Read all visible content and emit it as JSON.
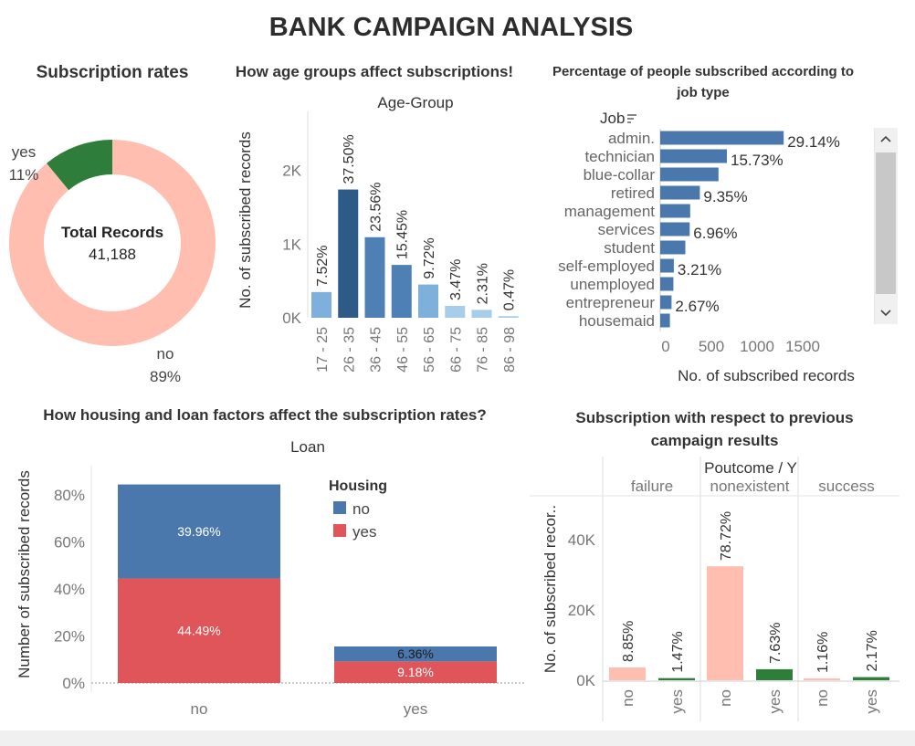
{
  "title": "BANK CAMPAIGN ANALYSIS",
  "subscription": {
    "title": "Subscription rates",
    "center_label": "Total Records",
    "center_value": "41,188"
  },
  "age": {
    "title": "How age groups affect subscriptions!",
    "header": "Age-Group"
  },
  "job": {
    "title_line1": "Percentage of people subscribed according to",
    "title_line2": "job type",
    "field_label": "Job",
    "scroll_up_icon": "chevron-up-icon",
    "scroll_down_icon": "chevron-down-icon"
  },
  "housing": {
    "title": "How housing and loan factors affect the subscription rates?",
    "header": "Loan",
    "legend_title": "Housing"
  },
  "poutcome": {
    "title_line1": "Subscription with respect to previous",
    "title_line2": "campaign results",
    "header": "Poutcome  /  Y"
  },
  "colors": {
    "donut_yes": "#2e7d3b",
    "donut_no": "#ffbeb0",
    "age_dark": "#2e5a88",
    "age_mid": "#4f80b5",
    "age_light": "#7fb0dc",
    "age_pale": "#a8cdea",
    "job_bar": "#4a78ad",
    "housing_no": "#4a78ad",
    "housing_yes": "#e0555a",
    "pout_no": "#ffbeb0",
    "pout_yes": "#2e7d3b"
  },
  "chart_data": [
    {
      "type": "pie",
      "name": "subscription-rates",
      "categories": [
        "yes",
        "no"
      ],
      "values": [
        11,
        89
      ],
      "labels": [
        "11%",
        "89%"
      ]
    },
    {
      "type": "bar",
      "name": "age-groups",
      "categories": [
        "17 - 25",
        "26 - 35",
        "36 - 45",
        "46 - 55",
        "56 - 65",
        "66 - 75",
        "76 - 85",
        "86 - 98"
      ],
      "values": [
        349,
        1740,
        1093,
        717,
        451,
        161,
        107,
        22
      ],
      "labels": [
        "7.52%",
        "37.50%",
        "23.56%",
        "15.45%",
        "9.72%",
        "3.47%",
        "2.31%",
        "0.47%"
      ],
      "ylabel": "No. of subscribed records",
      "yticks": [
        "0K",
        "1K",
        "2K"
      ],
      "ylim": [
        0,
        2800
      ]
    },
    {
      "type": "bar",
      "name": "job-type",
      "orientation": "horizontal",
      "categories": [
        "admin.",
        "technician",
        "blue-collar",
        "retired",
        "management",
        "services",
        "student",
        "self-employed",
        "unemployed",
        "entrepreneur",
        "housemaid"
      ],
      "values": [
        1352,
        730,
        638,
        434,
        328,
        323,
        275,
        149,
        144,
        124,
        106
      ],
      "labels": [
        "29.14%",
        "15.73%",
        "",
        "9.35%",
        "",
        "6.96%",
        "",
        "3.21%",
        "",
        "2.67%",
        ""
      ],
      "xlabel": "No. of subscribed records",
      "xticks": [
        "0",
        "500",
        "1000",
        "1500"
      ],
      "xlim": [
        0,
        2000
      ]
    },
    {
      "type": "bar",
      "name": "housing-loan",
      "stacked": true,
      "categories": [
        "no",
        "yes"
      ],
      "series": [
        {
          "name": "no",
          "values": [
            39.96,
            6.36
          ]
        },
        {
          "name": "yes",
          "values": [
            44.49,
            9.18
          ]
        }
      ],
      "labels_no": [
        "39.96%",
        "6.36%"
      ],
      "labels_yes": [
        "44.49%",
        "9.18%"
      ],
      "ylabel": "Number of subscribed records",
      "yticks": [
        "0%",
        "20%",
        "40%",
        "60%",
        "80%"
      ],
      "ylim": [
        0,
        90
      ]
    },
    {
      "type": "bar",
      "name": "poutcome",
      "groups": [
        "failure",
        "nonexistent",
        "success"
      ],
      "categories": [
        "no",
        "yes"
      ],
      "values": [
        [
          3647,
          605
        ],
        [
          32422,
          3141
        ],
        [
          479,
          894
        ]
      ],
      "labels": [
        [
          "8.85%",
          "1.47%"
        ],
        [
          "78.72%",
          "7.63%"
        ],
        [
          "1.16%",
          "2.17%"
        ]
      ],
      "ylabel": "No. of subscribed recor..",
      "yticks": [
        "0K",
        "20K",
        "40K"
      ],
      "ylim": [
        0,
        48000
      ]
    }
  ]
}
